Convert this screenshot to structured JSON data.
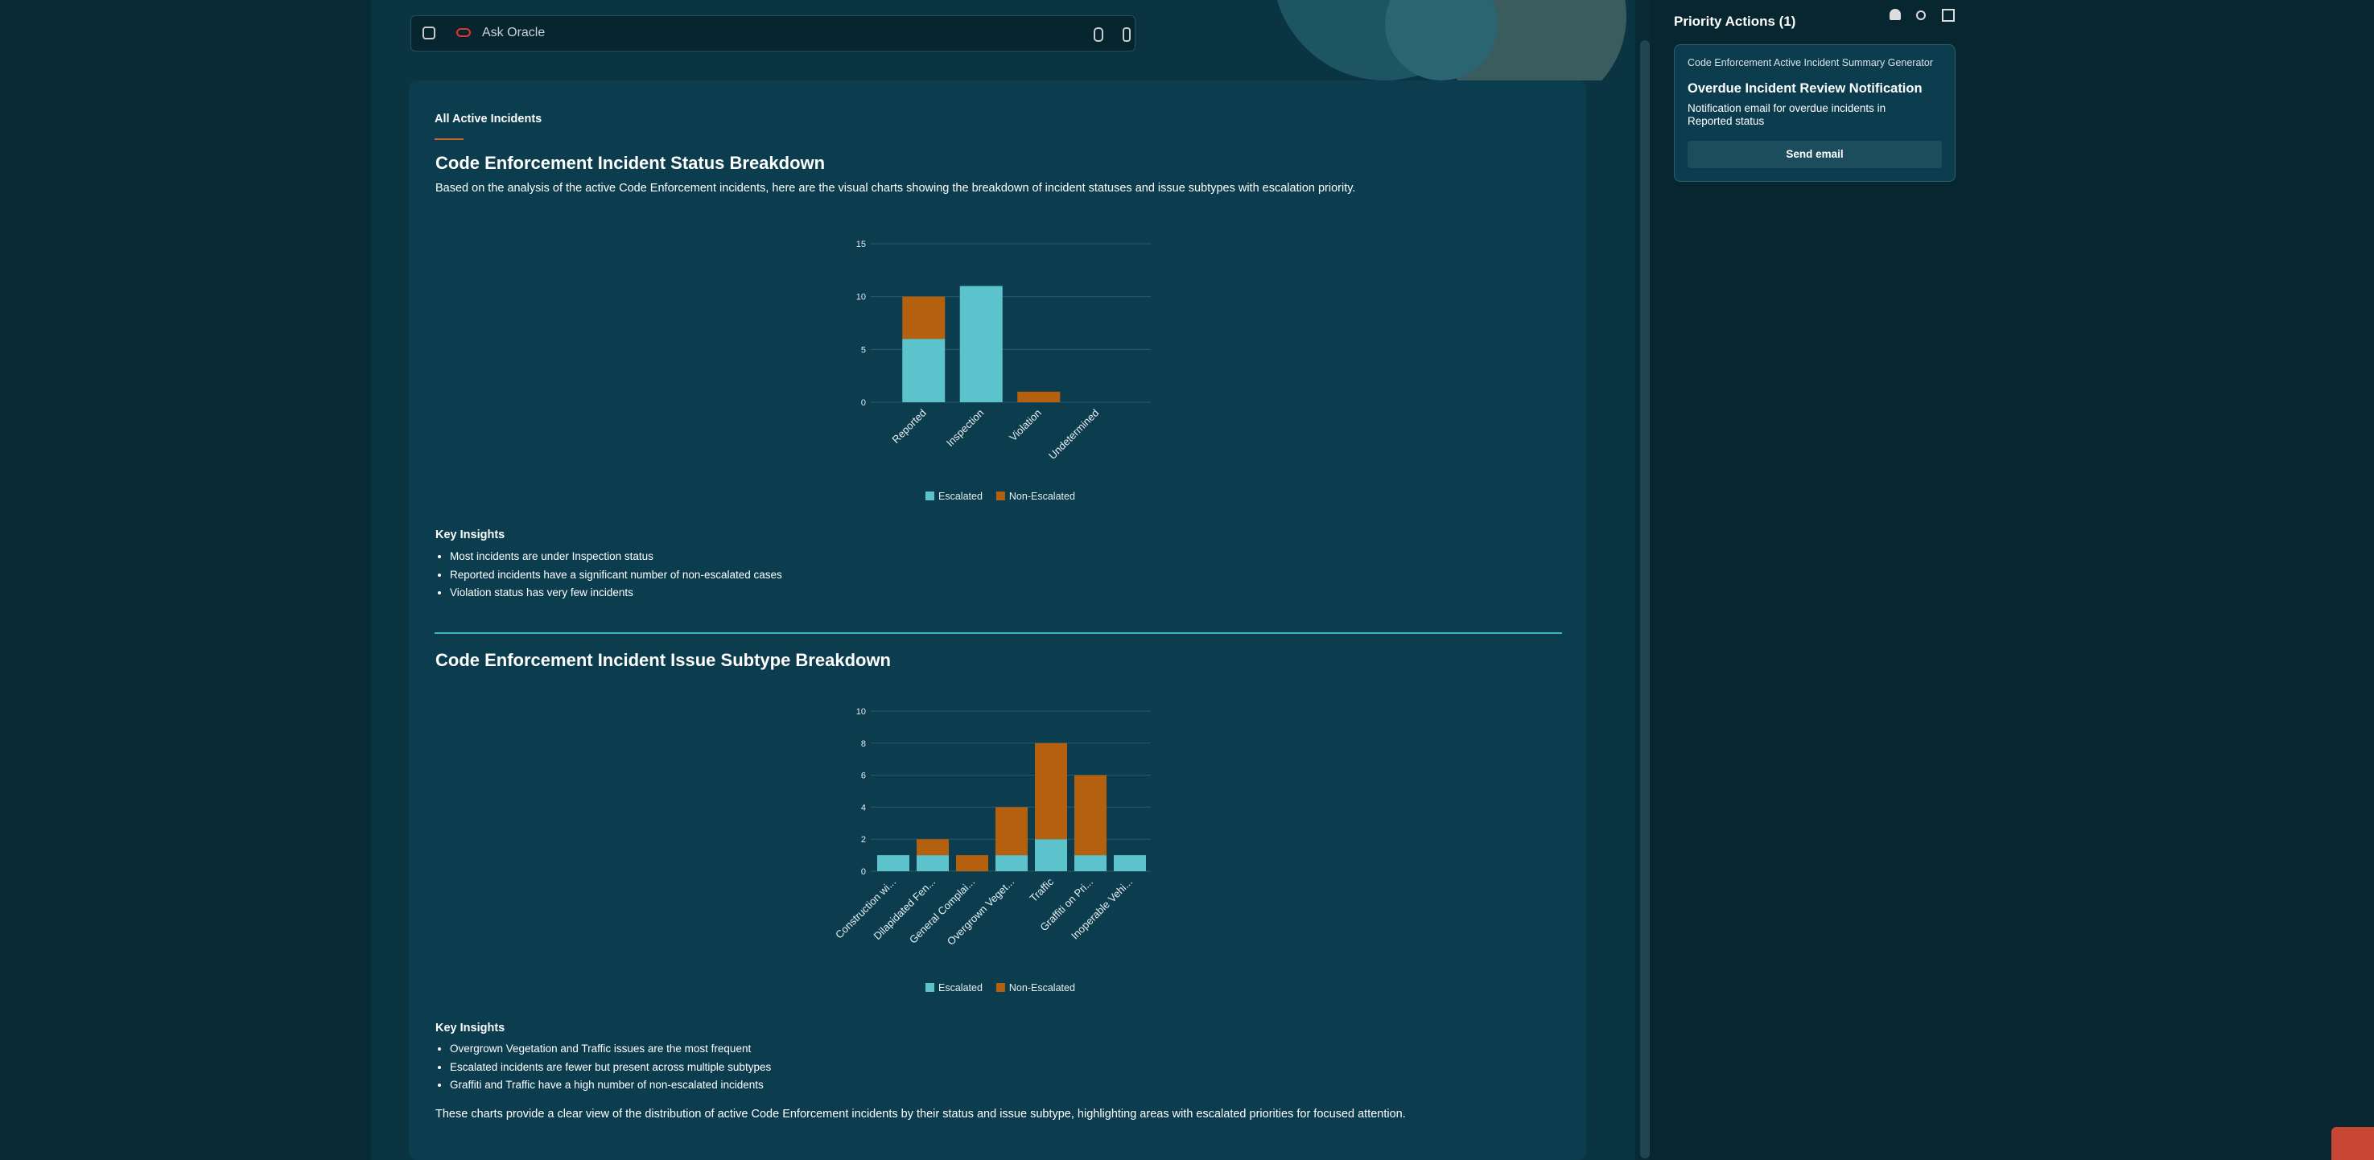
{
  "search": {
    "placeholder": "Ask Oracle"
  },
  "tab": "All Active Incidents",
  "sections": [
    {
      "title": "Code Enforcement Incident Status Breakdown",
      "description": "Based on the analysis of the active Code Enforcement incidents, here are the visual charts showing the breakdown of incident statuses and issue subtypes with escalation priority.",
      "insights_title": "Key Insights",
      "insights": [
        "Most incidents are under Inspection status",
        "Reported incidents have a significant number of non-escalated cases",
        "Violation status has very few incidents"
      ]
    },
    {
      "title": "Code Enforcement Incident Issue Subtype Breakdown",
      "insights_title": "Key Insights",
      "insights": [
        "Overgrown Vegetation and Traffic issues are the most frequent",
        "Escalated incidents are fewer but present across multiple subtypes",
        "Graffiti and Traffic have a high number of non-escalated incidents"
      ]
    }
  ],
  "closing": "These charts provide a clear view of the distribution of active Code Enforcement incidents by their status and issue subtype, highlighting areas with escalated priorities for focused attention.",
  "chart_data": [
    {
      "type": "bar",
      "stacked": true,
      "grid": true,
      "legend": "bottom",
      "categories": [
        "Reported",
        "Inspection",
        "Violation",
        "Undetermined"
      ],
      "series": [
        {
          "name": "Escalated",
          "color": "#5cc3cd",
          "values": [
            6,
            11,
            0,
            0
          ]
        },
        {
          "name": "Non-Escalated",
          "color": "#b4600f",
          "values": [
            4,
            0,
            1,
            0
          ]
        }
      ],
      "ylim": [
        0,
        15
      ],
      "yticks": [
        0,
        5,
        10,
        15
      ]
    },
    {
      "type": "bar",
      "stacked": true,
      "grid": true,
      "legend": "bottom",
      "categories": [
        "Construction wi...",
        "Dilapidated Fen...",
        "General Complai...",
        "Overgrown Veget...",
        "Traffic",
        "Graffiti on Pri...",
        "Inoperable Vehi..."
      ],
      "series": [
        {
          "name": "Escalated",
          "color": "#5cc3cd",
          "values": [
            1,
            1,
            0,
            1,
            2,
            1,
            1
          ]
        },
        {
          "name": "Non-Escalated",
          "color": "#b4600f",
          "values": [
            0,
            1,
            1,
            3,
            6,
            5,
            0
          ]
        }
      ],
      "ylim": [
        0,
        10
      ],
      "yticks": [
        0,
        2,
        4,
        6,
        8,
        10
      ]
    }
  ],
  "priority_actions": {
    "title": "Priority Actions (1)",
    "cards": [
      {
        "source": "Code Enforcement Active Incident Summary Generator",
        "title": "Overdue Incident Review Notification",
        "description": "Notification email for overdue incidents in Reported status",
        "button": "Send email"
      }
    ]
  }
}
